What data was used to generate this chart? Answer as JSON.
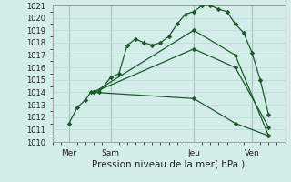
{
  "xlabel": "Pression niveau de la mer( hPa )",
  "ylim": [
    1010,
    1021
  ],
  "xlim": [
    0,
    14
  ],
  "bg_color": "#d4ecea",
  "grid_color": "#b8d8d4",
  "vline_color": "#7a9a98",
  "line_color": "#1a5c28",
  "x_ticks_pos": [
    1,
    3.5,
    8.5,
    12
  ],
  "x_ticks_labels": [
    "Mer",
    "Sam",
    "Jeu",
    "Ven"
  ],
  "x_vlines": [
    1,
    3.5,
    8.5,
    12
  ],
  "series": [
    {
      "x": [
        1.0,
        1.5,
        2.0,
        2.3,
        2.8,
        3.5,
        4.0,
        4.5,
        5.0,
        5.5,
        6.0,
        6.5,
        7.0,
        7.5,
        8.0,
        8.5,
        9.0,
        9.5,
        10.0,
        10.5,
        11.0,
        11.5,
        12.0,
        12.5,
        13.0
      ],
      "y": [
        1011.5,
        1012.8,
        1013.4,
        1014.0,
        1014.0,
        1015.2,
        1015.5,
        1017.8,
        1018.3,
        1018.0,
        1017.8,
        1018.0,
        1018.5,
        1019.5,
        1020.3,
        1020.5,
        1021.0,
        1021.0,
        1020.7,
        1020.5,
        1019.5,
        1018.8,
        1017.2,
        1015.0,
        1012.2
      ]
    },
    {
      "x": [
        2.5,
        8.5,
        11.0,
        13.0
      ],
      "y": [
        1014.0,
        1019.0,
        1017.0,
        1010.5
      ]
    },
    {
      "x": [
        2.5,
        8.5,
        11.0,
        13.0
      ],
      "y": [
        1014.0,
        1017.5,
        1016.0,
        1011.2
      ]
    },
    {
      "x": [
        2.5,
        8.5,
        11.0,
        13.0
      ],
      "y": [
        1014.0,
        1013.5,
        1011.5,
        1010.5
      ]
    }
  ]
}
